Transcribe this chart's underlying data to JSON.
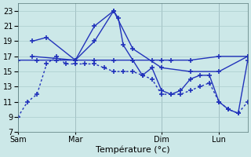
{
  "background_color": "#cce8e8",
  "grid_color": "#aacccc",
  "line_color": "#2233bb",
  "line_width": 1.0,
  "marker": "+",
  "marker_size": 5,
  "marker_lw": 1.2,
  "xlabel": "Température (°c)",
  "xlabel_fontsize": 8,
  "tick_fontsize": 7,
  "ylim": [
    7,
    24
  ],
  "yticks": [
    7,
    9,
    11,
    13,
    15,
    17,
    19,
    21,
    23
  ],
  "xlim": [
    0,
    240
  ],
  "day_positions": [
    0,
    60,
    150,
    210
  ],
  "day_labels": [
    "Sam",
    "Mar",
    "Dim",
    "Lun"
  ],
  "vline_positions": [
    0,
    60,
    150,
    210,
    240
  ],
  "series": [
    {
      "x": [
        0,
        10,
        20,
        30,
        40,
        50,
        60,
        70,
        80,
        90,
        100,
        110,
        120,
        130,
        140,
        150,
        160,
        170,
        180,
        190,
        200,
        210,
        220,
        230,
        240
      ],
      "y": [
        9,
        11,
        12,
        16,
        17,
        16,
        16,
        16,
        16,
        15.5,
        15,
        15,
        15,
        14.5,
        14,
        12,
        12,
        12,
        12.5,
        13,
        13.5,
        11,
        10,
        9.5,
        11
      ],
      "linestyle": "dotted"
    },
    {
      "x": [
        0,
        20,
        40,
        60,
        80,
        100,
        120,
        140,
        150,
        160,
        180,
        210,
        240
      ],
      "y": [
        16.5,
        16.5,
        16.5,
        16.5,
        16.5,
        16.5,
        16.5,
        16.5,
        16.5,
        16.5,
        16.5,
        17,
        17
      ],
      "linestyle": "solid"
    },
    {
      "x": [
        15,
        30,
        60,
        80,
        100,
        120,
        150,
        180,
        210,
        240
      ],
      "y": [
        19,
        19.5,
        16.5,
        19,
        23,
        18,
        15.5,
        15,
        15,
        17
      ],
      "linestyle": "solid"
    },
    {
      "x": [
        15,
        60,
        80,
        100,
        105,
        110,
        120,
        130,
        140,
        150,
        160,
        170,
        180,
        190,
        200,
        210,
        220,
        230,
        240
      ],
      "y": [
        17,
        16.5,
        21.0,
        23,
        22,
        18.5,
        16.5,
        14.5,
        15.5,
        12.5,
        12.0,
        12.5,
        14.0,
        14.5,
        14.5,
        11,
        10,
        9.5,
        16.5
      ],
      "linestyle": "solid"
    }
  ]
}
